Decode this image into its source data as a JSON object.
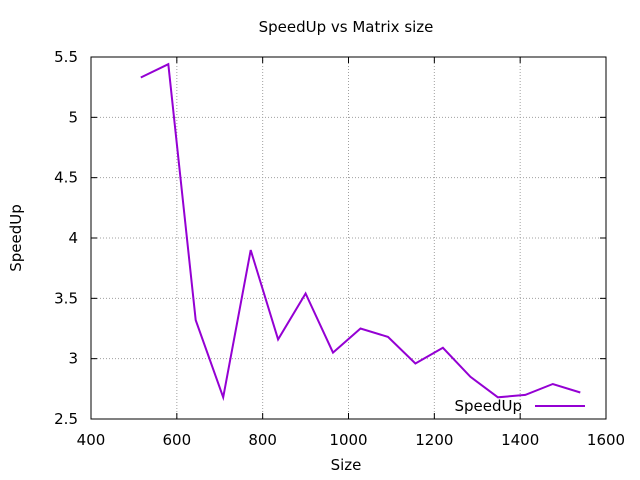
{
  "chart_data": {
    "type": "line",
    "title": "SpeedUp vs Matrix size",
    "xlabel": "Size",
    "ylabel": "SpeedUp",
    "xlim": [
      400,
      1600
    ],
    "ylim": [
      2.5,
      5.5
    ],
    "xticks": [
      400,
      600,
      800,
      1000,
      1200,
      1400,
      1600
    ],
    "yticks": [
      2.5,
      3,
      3.5,
      4,
      4.5,
      5,
      5.5
    ],
    "xtick_labels": [
      "400",
      "600",
      "800",
      "1000",
      "1200",
      "1400",
      "1600"
    ],
    "ytick_labels": [
      "2.5",
      "3",
      "3.5",
      "4",
      "4.5",
      "5",
      "5.5"
    ],
    "grid": true,
    "legend_position": "bottom-right",
    "series": [
      {
        "name": "SpeedUp",
        "color": "#9400d3",
        "x": [
          516,
          580,
          644,
          708,
          772,
          836,
          900,
          964,
          1028,
          1092,
          1156,
          1220,
          1284,
          1348,
          1412,
          1476,
          1540
        ],
        "y": [
          5.33,
          5.44,
          3.32,
          2.68,
          3.9,
          3.16,
          3.54,
          3.05,
          3.25,
          3.18,
          2.96,
          3.09,
          2.85,
          2.68,
          2.7,
          2.79,
          2.72
        ]
      }
    ]
  }
}
